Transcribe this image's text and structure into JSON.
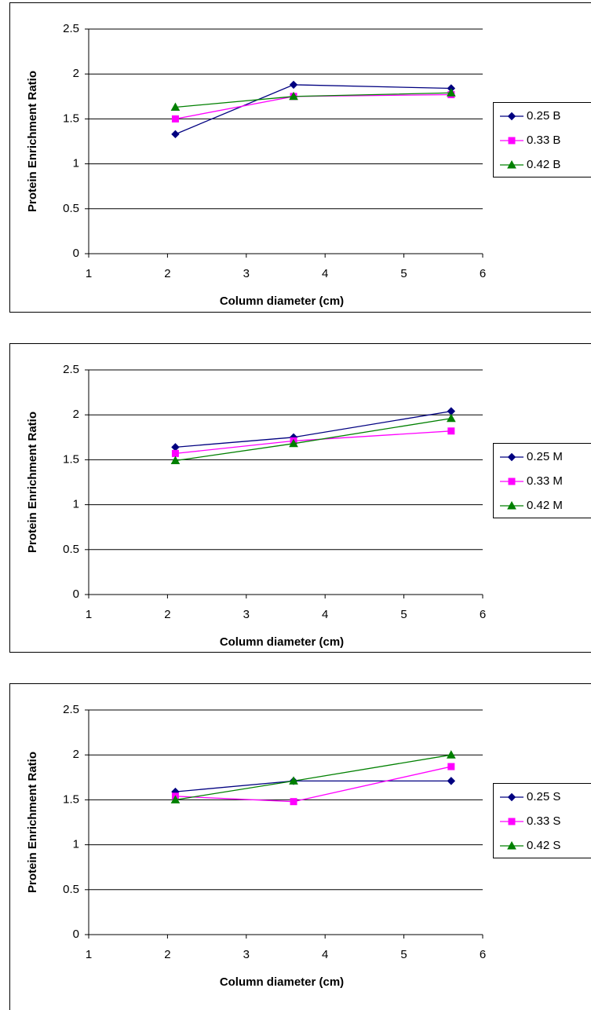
{
  "chart_data": [
    {
      "type": "line",
      "xlabel": "Column diameter (cm)",
      "ylabel": "Protein Enrichment Ratio",
      "x": [
        2.1,
        3.6,
        5.6
      ],
      "xlim": [
        1,
        6
      ],
      "xticks": [
        1,
        2,
        3,
        4,
        5,
        6
      ],
      "ylim": [
        0,
        2.5
      ],
      "yticks": [
        0,
        0.5,
        1,
        1.5,
        2,
        2.5
      ],
      "grid": true,
      "legend": "right",
      "series": [
        {
          "name": "0.25 B",
          "color": "#000080",
          "marker": "diamond",
          "values": [
            1.33,
            1.88,
            1.84
          ]
        },
        {
          "name": "0.33 B",
          "color": "#ff00ff",
          "marker": "square",
          "values": [
            1.5,
            1.75,
            1.77
          ]
        },
        {
          "name": "0.42 B",
          "color": "#008000",
          "marker": "triangle",
          "values": [
            1.63,
            1.75,
            1.79
          ]
        }
      ]
    },
    {
      "type": "line",
      "xlabel": "Column diameter (cm)",
      "ylabel": "Protein Enrichment Ratio",
      "x": [
        2.1,
        3.6,
        5.6
      ],
      "xlim": [
        1,
        6
      ],
      "xticks": [
        1,
        2,
        3,
        4,
        5,
        6
      ],
      "ylim": [
        0,
        2.5
      ],
      "yticks": [
        0,
        0.5,
        1,
        1.5,
        2,
        2.5
      ],
      "grid": true,
      "legend": "right",
      "series": [
        {
          "name": "0.25 M",
          "color": "#000080",
          "marker": "diamond",
          "values": [
            1.64,
            1.75,
            2.04
          ]
        },
        {
          "name": "0.33 M",
          "color": "#ff00ff",
          "marker": "square",
          "values": [
            1.57,
            1.71,
            1.82
          ]
        },
        {
          "name": "0.42 M",
          "color": "#008000",
          "marker": "triangle",
          "values": [
            1.49,
            1.68,
            1.96
          ]
        }
      ]
    },
    {
      "type": "line",
      "xlabel": "Column diameter (cm)",
      "ylabel": "Protein Enrichment Ratio",
      "x": [
        2.1,
        3.6,
        5.6
      ],
      "xlim": [
        1,
        6
      ],
      "xticks": [
        1,
        2,
        3,
        4,
        5,
        6
      ],
      "ylim": [
        0,
        2.5
      ],
      "yticks": [
        0,
        0.5,
        1,
        1.5,
        2,
        2.5
      ],
      "grid": true,
      "legend": "right",
      "series": [
        {
          "name": "0.25 S",
          "color": "#000080",
          "marker": "diamond",
          "values": [
            1.59,
            1.71,
            1.71
          ]
        },
        {
          "name": "0.33 S",
          "color": "#ff00ff",
          "marker": "square",
          "values": [
            1.54,
            1.48,
            1.87
          ]
        },
        {
          "name": "0.42 S",
          "color": "#008000",
          "marker": "triangle",
          "values": [
            1.5,
            1.71,
            2.0
          ]
        }
      ]
    }
  ]
}
